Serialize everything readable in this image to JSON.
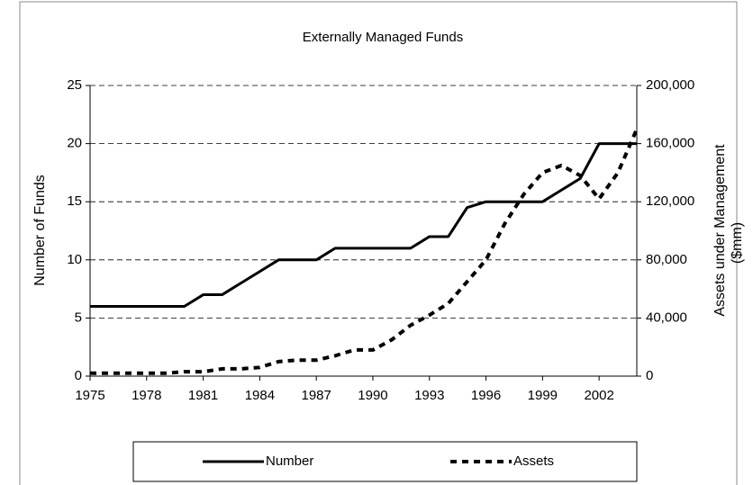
{
  "chart_data": {
    "type": "line",
    "title": "Externally Managed Funds",
    "ylabel": "Number of Funds",
    "y2label": [
      "Assets under Management",
      "($mm)"
    ],
    "x": [
      1975,
      1976,
      1977,
      1978,
      1979,
      1980,
      1981,
      1982,
      1983,
      1984,
      1985,
      1986,
      1987,
      1988,
      1989,
      1990,
      1991,
      1992,
      1993,
      1994,
      1995,
      1996,
      1997,
      1998,
      1999,
      2000,
      2001,
      2002,
      2003,
      2004
    ],
    "series": [
      {
        "name": "Number",
        "color": "#000000",
        "style": "solid",
        "values": [
          6,
          6,
          6,
          6,
          6,
          6,
          7,
          7,
          8,
          9,
          10,
          10,
          10,
          11,
          11,
          11,
          11,
          11,
          12,
          12,
          14.5,
          15,
          15,
          15,
          15,
          16,
          17,
          20,
          20,
          20
        ]
      },
      {
        "name": "Assets",
        "color": "#000000",
        "style": "dashed",
        "axis": "y2",
        "values": [
          2000,
          2000,
          2000,
          2000,
          2000,
          3000,
          3000,
          5000,
          5000,
          6000,
          10000,
          11000,
          11000,
          14000,
          18000,
          18000,
          25000,
          35000,
          42000,
          50000,
          65000,
          80000,
          105000,
          125000,
          140000,
          145000,
          138000,
          122000,
          140000,
          170000
        ]
      }
    ],
    "xlim": [
      1975,
      2004
    ],
    "xticks": [
      1975,
      1978,
      1981,
      1984,
      1987,
      1990,
      1993,
      1996,
      1999,
      2002
    ],
    "ylim": [
      0,
      25
    ],
    "yticks": [
      0,
      5,
      10,
      15,
      20,
      25
    ],
    "y2lim": [
      0,
      200000
    ],
    "y2ticks": [
      0,
      {
        "value": 40000,
        "label": "40,000"
      },
      {
        "value": 80000,
        "label": "80,000"
      },
      {
        "value": 120000,
        "label": "120,000"
      },
      {
        "value": 160000,
        "label": "160,000"
      },
      {
        "value": 200000,
        "label": "200,000"
      }
    ],
    "grid": true,
    "legend": "bottom"
  }
}
